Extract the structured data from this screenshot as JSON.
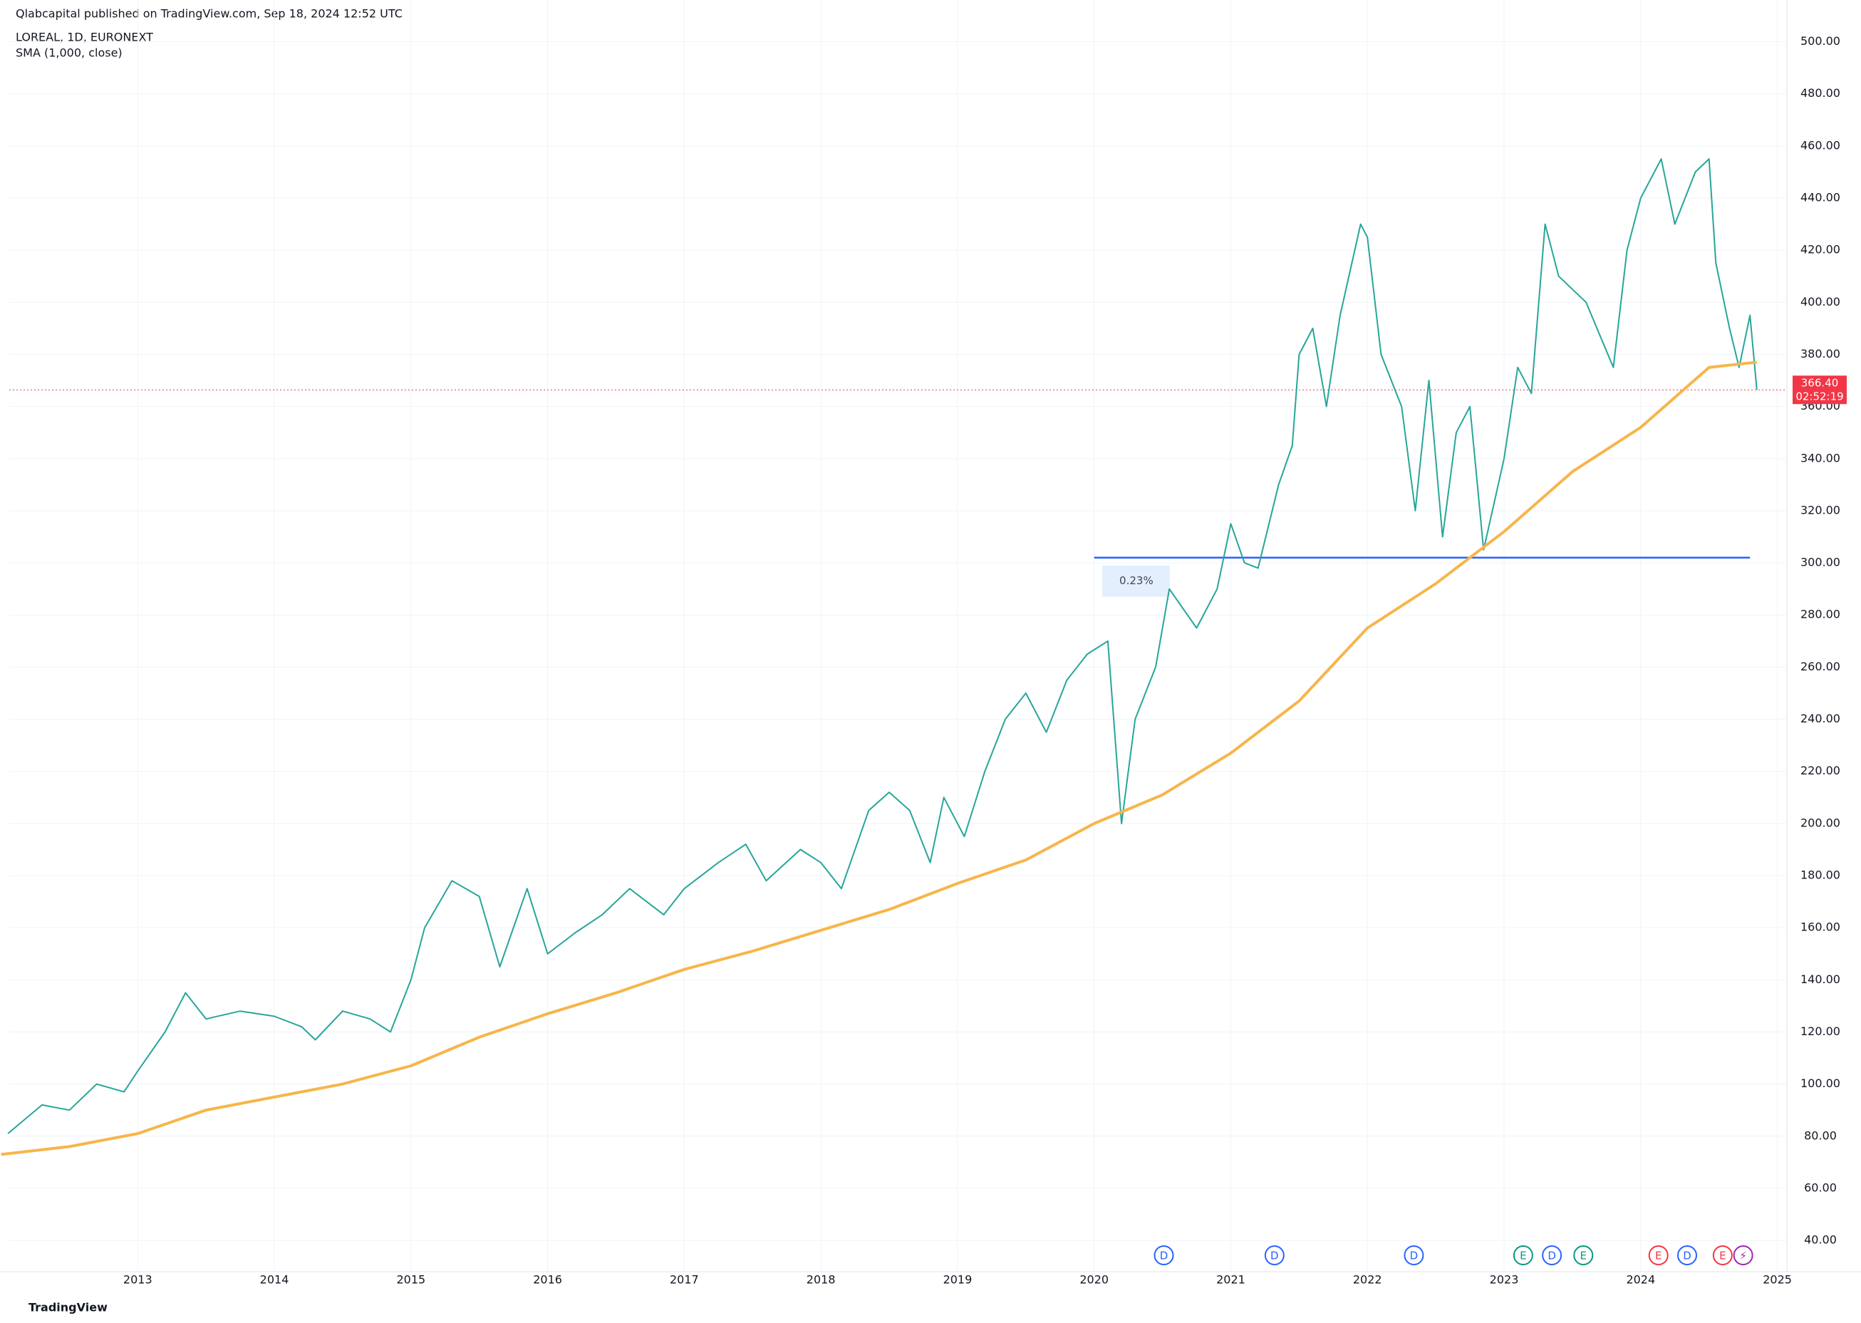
{
  "header": {
    "published": "Qlabcapital published on TradingView.com, Sep 18, 2024 12:52 UTC",
    "symbol": "LOREAL, 1D, EURONEXT",
    "indicator": "SMA (1,000, close)"
  },
  "footer": {
    "brand": "TradingView"
  },
  "chart_data": {
    "type": "line",
    "series": [
      {
        "name": "LOREAL",
        "color": "#26a69a",
        "x": [
          2012.05,
          2012.3,
          2012.5,
          2012.7,
          2012.9,
          2013.0,
          2013.2,
          2013.35,
          2013.5,
          2013.75,
          2014.0,
          2014.2,
          2014.3,
          2014.5,
          2014.7,
          2014.85,
          2015.0,
          2015.1,
          2015.3,
          2015.5,
          2015.65,
          2015.85,
          2016.0,
          2016.2,
          2016.4,
          2016.6,
          2016.85,
          2017.0,
          2017.25,
          2017.45,
          2017.6,
          2017.85,
          2018.0,
          2018.15,
          2018.35,
          2018.5,
          2018.65,
          2018.8,
          2018.9,
          2019.05,
          2019.2,
          2019.35,
          2019.5,
          2019.65,
          2019.8,
          2019.95,
          2020.1,
          2020.2,
          2020.3,
          2020.45,
          2020.55,
          2020.75,
          2020.9,
          2021.0,
          2021.1,
          2021.2,
          2021.35,
          2021.45,
          2021.5,
          2021.6,
          2021.7,
          2021.8,
          2021.95,
          2022.0,
          2022.1,
          2022.25,
          2022.35,
          2022.45,
          2022.55,
          2022.65,
          2022.75,
          2022.85,
          2023.0,
          2023.1,
          2023.2,
          2023.3,
          2023.4,
          2023.6,
          2023.8,
          2023.9,
          2024.0,
          2024.15,
          2024.25,
          2024.4,
          2024.5,
          2024.55,
          2024.65,
          2024.72,
          2024.8,
          2024.85
        ],
        "values": [
          81,
          92,
          90,
          100,
          97,
          105,
          120,
          135,
          125,
          128,
          126,
          122,
          117,
          128,
          125,
          120,
          140,
          160,
          178,
          172,
          145,
          175,
          150,
          158,
          165,
          175,
          165,
          175,
          185,
          192,
          178,
          190,
          185,
          175,
          205,
          212,
          205,
          185,
          210,
          195,
          220,
          240,
          250,
          235,
          255,
          265,
          270,
          200,
          240,
          260,
          290,
          275,
          290,
          315,
          300,
          298,
          330,
          345,
          380,
          390,
          360,
          395,
          430,
          425,
          380,
          360,
          320,
          370,
          310,
          350,
          360,
          305,
          340,
          375,
          365,
          430,
          410,
          400,
          375,
          420,
          440,
          455,
          430,
          450,
          455,
          415,
          390,
          375,
          395,
          366.4
        ]
      },
      {
        "name": "SMA (1,000, close)",
        "color": "#f7b54a",
        "x": [
          2012.0,
          2012.5,
          2013.0,
          2013.5,
          2014.0,
          2014.5,
          2015.0,
          2015.5,
          2016.0,
          2016.5,
          2017.0,
          2017.5,
          2018.0,
          2018.5,
          2019.0,
          2019.5,
          2020.0,
          2020.5,
          2021.0,
          2021.5,
          2022.0,
          2022.5,
          2023.0,
          2023.5,
          2024.0,
          2024.5,
          2024.85
        ],
        "values": [
          73,
          76,
          81,
          90,
          95,
          100,
          107,
          118,
          127,
          135,
          144,
          151,
          159,
          167,
          177,
          186,
          200,
          211,
          227,
          247,
          275,
          292,
          312,
          335,
          352,
          375,
          377
        ]
      }
    ],
    "last_price": {
      "value": 366.4,
      "label": "366.40",
      "countdown": "02:52:19",
      "color": "#f23645"
    },
    "support": {
      "value": 302,
      "x": [
        2020.0,
        2024.8
      ],
      "color": "#2962ff"
    },
    "measure": {
      "label": "0.23%",
      "x": 2020.1,
      "y": 293
    },
    "events": [
      {
        "x": 2020.51,
        "label": "D",
        "color": "#2962ff"
      },
      {
        "x": 2021.32,
        "label": "D",
        "color": "#2962ff"
      },
      {
        "x": 2022.34,
        "label": "D",
        "color": "#2962ff"
      },
      {
        "x": 2023.14,
        "label": "E",
        "color": "#089981"
      },
      {
        "x": 2023.35,
        "label": "D",
        "color": "#2962ff"
      },
      {
        "x": 2023.58,
        "label": "E",
        "color": "#089981"
      },
      {
        "x": 2024.13,
        "label": "E",
        "color": "#f23645"
      },
      {
        "x": 2024.34,
        "label": "D",
        "color": "#2962ff"
      },
      {
        "x": 2024.6,
        "label": "E",
        "color": "#f23645"
      },
      {
        "x": 2024.75,
        "label": "⚡",
        "color": "#9c27b0"
      }
    ],
    "xlim": [
      2012.06,
      2025.07
    ],
    "ylim": [
      28,
      516
    ],
    "xticks": [
      2013,
      2014,
      2015,
      2016,
      2017,
      2018,
      2019,
      2020,
      2021,
      2022,
      2023,
      2024,
      2025
    ],
    "yticks": [
      {
        "value": 40,
        "label": "40.00"
      },
      {
        "value": 60,
        "label": "60.00"
      },
      {
        "value": 80,
        "label": "80.00"
      },
      {
        "value": 100,
        "label": "100.00"
      },
      {
        "value": 120,
        "label": "120.00"
      },
      {
        "value": 140,
        "label": "140.00"
      },
      {
        "value": 160,
        "label": "160.00"
      },
      {
        "value": 180,
        "label": "180.00"
      },
      {
        "value": 200,
        "label": "200.00"
      },
      {
        "value": 220,
        "label": "220.00"
      },
      {
        "value": 240,
        "label": "240.00"
      },
      {
        "value": 260,
        "label": "260.00"
      },
      {
        "value": 280,
        "label": "280.00"
      },
      {
        "value": 300,
        "label": "300.00"
      },
      {
        "value": 320,
        "label": "320.00"
      },
      {
        "value": 340,
        "label": "340.00"
      },
      {
        "value": 360,
        "label": "360.00"
      },
      {
        "value": 380,
        "label": "380.00"
      },
      {
        "value": 400,
        "label": "400.00"
      },
      {
        "value": 420,
        "label": "420.00"
      },
      {
        "value": 440,
        "label": "440.00"
      },
      {
        "value": 460,
        "label": "460.00"
      },
      {
        "value": 480,
        "label": "480.00"
      },
      {
        "value": 500,
        "label": "500.00"
      }
    ],
    "grid": true
  }
}
